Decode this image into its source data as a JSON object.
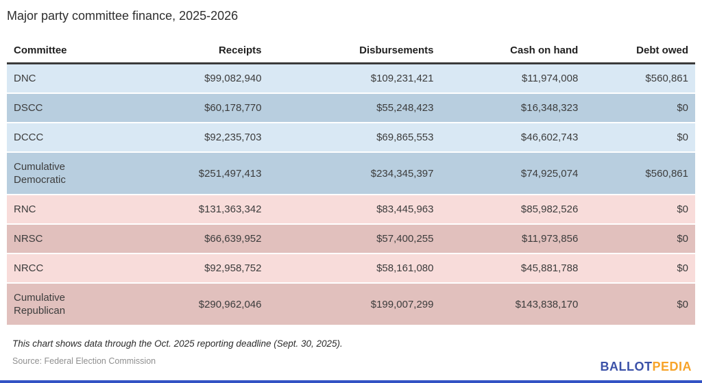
{
  "title": "Major party committee finance, 2025-2026",
  "table": {
    "columns": [
      "Committee",
      "Receipts",
      "Disbursements",
      "Cash on hand",
      "Debt owed"
    ],
    "field_keys": [
      "committee",
      "receipts",
      "disbursements",
      "cash_on_hand",
      "debt_owed"
    ],
    "rows": [
      {
        "committee": "DNC",
        "receipts": "$99,082,940",
        "disbursements": "$109,231,421",
        "cash_on_hand": "$11,974,008",
        "debt_owed": "$560,861",
        "shade": "dem-light"
      },
      {
        "committee": "DSCC",
        "receipts": "$60,178,770",
        "disbursements": "$55,248,423",
        "cash_on_hand": "$16,348,323",
        "debt_owed": "$0",
        "shade": "dem-dark"
      },
      {
        "committee": "DCCC",
        "receipts": "$92,235,703",
        "disbursements": "$69,865,553",
        "cash_on_hand": "$46,602,743",
        "debt_owed": "$0",
        "shade": "dem-light"
      },
      {
        "committee": "Cumulative Democratic",
        "receipts": "$251,497,413",
        "disbursements": "$234,345,397",
        "cash_on_hand": "$74,925,074",
        "debt_owed": "$560,861",
        "shade": "dem-dark"
      },
      {
        "committee": "RNC",
        "receipts": "$131,363,342",
        "disbursements": "$83,445,963",
        "cash_on_hand": "$85,982,526",
        "debt_owed": "$0",
        "shade": "rep-light"
      },
      {
        "committee": "NRSC",
        "receipts": "$66,639,952",
        "disbursements": "$57,400,255",
        "cash_on_hand": "$11,973,856",
        "debt_owed": "$0",
        "shade": "rep-dark"
      },
      {
        "committee": "NRCC",
        "receipts": "$92,958,752",
        "disbursements": "$58,161,080",
        "cash_on_hand": "$45,881,788",
        "debt_owed": "$0",
        "shade": "rep-light"
      },
      {
        "committee": "Cumulative Republican",
        "receipts": "$290,962,046",
        "disbursements": "$199,007,299",
        "cash_on_hand": "$143,838,170",
        "debt_owed": "$0",
        "shade": "rep-dark"
      }
    ]
  },
  "footnote": "This chart shows data through the Oct. 2025 reporting deadline (Sept. 30, 2025).",
  "source": "Source: Federal Election Commission",
  "logo": {
    "part1": "BALLOT",
    "part2": "PEDIA"
  },
  "colors": {
    "dem_light": "#d9e8f4",
    "dem_dark": "#b8cedf",
    "rep_light": "#f8dcda",
    "rep_dark": "#e1c0bd",
    "logo_blue": "#3b51a8",
    "logo_orange": "#f7a329",
    "bar_blue": "#3353c4"
  },
  "chart_data": {
    "type": "table",
    "title": "Major party committee finance, 2025-2026",
    "columns": [
      "Committee",
      "Receipts",
      "Disbursements",
      "Cash on hand",
      "Debt owed"
    ],
    "rows": [
      [
        "DNC",
        "$99,082,940",
        "$109,231,421",
        "$11,974,008",
        "$560,861"
      ],
      [
        "DSCC",
        "$60,178,770",
        "$55,248,423",
        "$16,348,323",
        "$0"
      ],
      [
        "DCCC",
        "$92,235,703",
        "$69,865,553",
        "$46,602,743",
        "$0"
      ],
      [
        "Cumulative Democratic",
        "$251,497,413",
        "$234,345,397",
        "$74,925,074",
        "$560,861"
      ],
      [
        "RNC",
        "$131,363,342",
        "$83,445,963",
        "$85,982,526",
        "$0"
      ],
      [
        "NRSC",
        "$66,639,952",
        "$57,400,255",
        "$11,973,856",
        "$0"
      ],
      [
        "NRCC",
        "$92,958,752",
        "$58,161,080",
        "$45,881,788",
        "$0"
      ],
      [
        "Cumulative Republican",
        "$290,962,046",
        "$199,007,299",
        "$143,838,170",
        "$0"
      ]
    ],
    "footnote": "This chart shows data through the Oct. 2025 reporting deadline (Sept. 30, 2025).",
    "source": "Source: Federal Election Commission"
  }
}
